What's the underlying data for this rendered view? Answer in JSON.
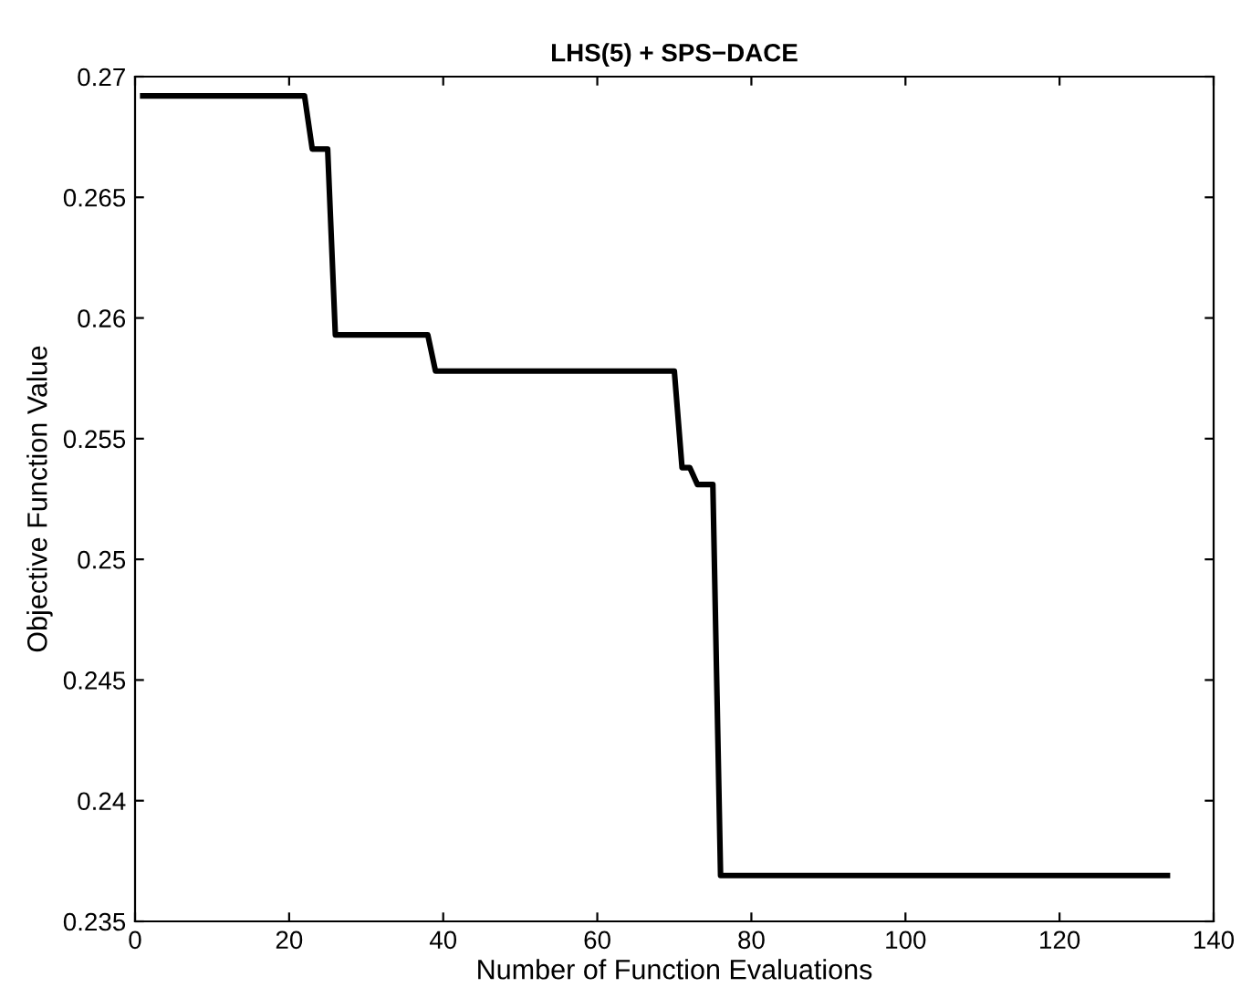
{
  "chart_data": {
    "type": "line",
    "title": "LHS(5) + SPS−DACE",
    "xlabel": "Number of Function Evaluations",
    "ylabel": "Objective Function Value",
    "series": [
      {
        "color": "#000000",
        "x": [
          1,
          22,
          23,
          25,
          26,
          38,
          39,
          70,
          71,
          72,
          73,
          75,
          76,
          134
        ],
        "values": [
          0.2692,
          0.2692,
          0.267,
          0.267,
          0.2593,
          0.2593,
          0.2578,
          0.2578,
          0.2538,
          0.2538,
          0.2531,
          0.2531,
          0.2369,
          0.2369
        ]
      }
    ],
    "xlim": [
      0,
      140
    ],
    "xticks": [
      0,
      20,
      40,
      60,
      80,
      100,
      120,
      140
    ],
    "ylim": [
      0.235,
      0.27
    ],
    "yticks": [
      0.235,
      0.24,
      0.245,
      0.25,
      0.255,
      0.26,
      0.265,
      0.27
    ],
    "grid": false,
    "legend": false,
    "marker": "none",
    "line_style": "solid"
  }
}
